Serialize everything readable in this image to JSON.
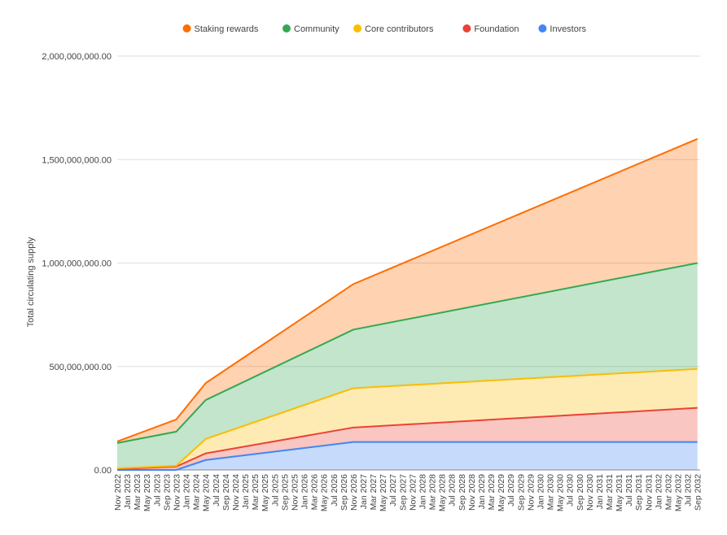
{
  "chart_data": {
    "type": "area",
    "stacked": true,
    "ylabel": "Total circulating supply",
    "xlabel": "",
    "ylim": [
      0,
      2000000000
    ],
    "yticks": [
      "0.00",
      "500,000,000.00",
      "1,000,000,000.00",
      "1,500,000,000.00",
      "2,000,000,000.00"
    ],
    "ytick_values": [
      0,
      500000000,
      1000000000,
      1500000000,
      2000000000
    ],
    "grid": true,
    "legend_position": "top",
    "x": [
      "2022-11",
      "2023-11",
      "2024-05",
      "2026-11",
      "2032-09"
    ],
    "series": [
      {
        "name": "Investors",
        "color": "#4285f4",
        "values": [
          0,
          0,
          48000000,
          135000000,
          135000000
        ]
      },
      {
        "name": "Foundation",
        "color": "#ea4335",
        "values": [
          4000000,
          16000000,
          32000000,
          70000000,
          165000000
        ]
      },
      {
        "name": "Core contributors",
        "color": "#fbbc04",
        "values": [
          4000000,
          4000000,
          70000000,
          190000000,
          188000000
        ]
      },
      {
        "name": "Community",
        "color": "#34a853",
        "values": [
          122000000,
          165000000,
          188000000,
          283000000,
          512000000
        ]
      },
      {
        "name": "Staking rewards",
        "color": "#ff6d01",
        "values": [
          8000000,
          59000000,
          82000000,
          220000000,
          600000000
        ]
      }
    ],
    "legend_order": [
      "Staking rewards",
      "Community",
      "Core contributors",
      "Foundation",
      "Investors"
    ],
    "xtick_labels": [
      "Nov 2022",
      "Jan 2023",
      "Mar 2023",
      "May 2023",
      "Jul 2023",
      "Sep 2023",
      "Nov 2023",
      "Jan 2024",
      "Mar 2024",
      "May 2024",
      "Jul 2024",
      "Sep 2024",
      "Nov 2024",
      "Jan 2025",
      "Mar 2025",
      "May 2025",
      "Jul 2025",
      "Sep 2025",
      "Nov 2025",
      "Jan 2026",
      "Mar 2026",
      "May 2026",
      "Jul 2026",
      "Sep 2026",
      "Nov 2026",
      "Jan 2027",
      "Mar 2027",
      "May 2027",
      "Jul 2027",
      "Sep 2027",
      "Nov 2027",
      "Jan 2028",
      "Mar 2028",
      "May 2028",
      "Jul 2028",
      "Sep 2028",
      "Nov 2028",
      "Jan 2029",
      "Mar 2029",
      "May 2029",
      "Jul 2029",
      "Sep 2029",
      "Nov 2029",
      "Jan 2030",
      "Mar 2030",
      "May 2030",
      "Jul 2030",
      "Sep 2030",
      "Nov 2030",
      "Jan 2031",
      "Mar 2031",
      "May 2031",
      "Jul 2031",
      "Sep 2031",
      "Nov 2031",
      "Jan 2032",
      "Mar 2032",
      "May 2032",
      "Jul 2032",
      "Sep 2032"
    ]
  }
}
